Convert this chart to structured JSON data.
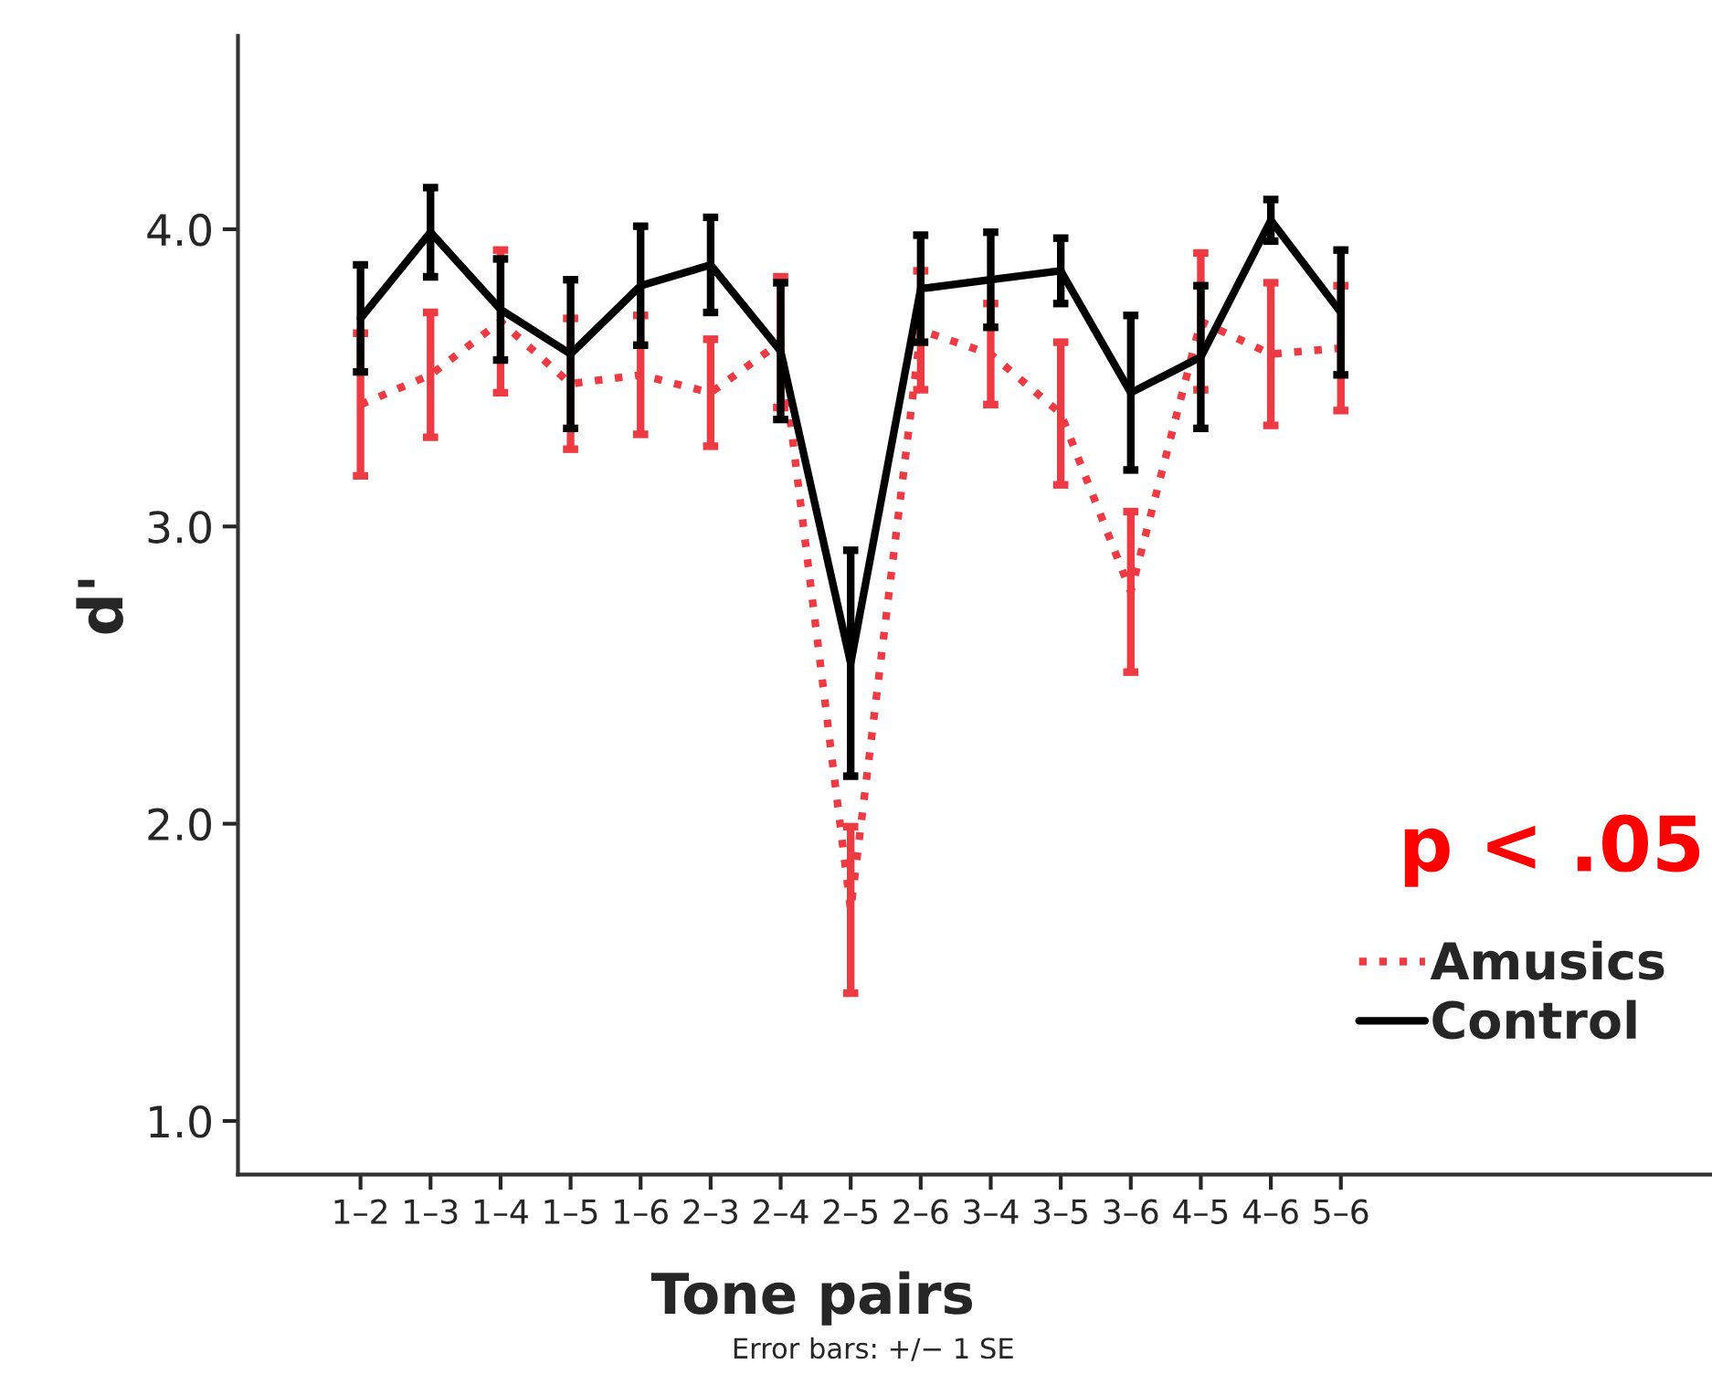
{
  "chart_data": {
    "type": "line",
    "xlabel": "Tone pairs",
    "ylabel": "d'",
    "categories": [
      "1–2",
      "1–3",
      "1–4",
      "1–5",
      "1–6",
      "2–3",
      "2–4",
      "2–5",
      "2–6",
      "3–4",
      "3–5",
      "3–6",
      "4–5",
      "4–6",
      "5–6"
    ],
    "series": [
      {
        "name": "Amusics",
        "color": "#ee3a43",
        "line_style": "dotted",
        "values": [
          3.41,
          3.51,
          3.69,
          3.48,
          3.51,
          3.45,
          3.62,
          1.71,
          3.66,
          3.58,
          3.38,
          2.78,
          3.69,
          3.58,
          3.6
        ],
        "errors": [
          0.24,
          0.21,
          0.24,
          0.22,
          0.2,
          0.18,
          0.22,
          0.28,
          0.2,
          0.17,
          0.24,
          0.27,
          0.23,
          0.24,
          0.21
        ]
      },
      {
        "name": "Control",
        "color": "#000000",
        "line_style": "solid",
        "values": [
          3.7,
          3.99,
          3.73,
          3.58,
          3.81,
          3.88,
          3.59,
          2.54,
          3.8,
          3.83,
          3.86,
          3.45,
          3.57,
          4.03,
          3.72
        ],
        "errors": [
          0.18,
          0.15,
          0.17,
          0.25,
          0.2,
          0.16,
          0.23,
          0.38,
          0.18,
          0.16,
          0.11,
          0.26,
          0.24,
          0.07,
          0.21
        ]
      }
    ],
    "ylim": [
      0.82,
      4.65
    ],
    "yticks": [
      {
        "value": 1,
        "label": "1.0"
      },
      {
        "value": 2,
        "label": "2.0"
      },
      {
        "value": 3,
        "label": "3.0"
      },
      {
        "value": 4,
        "label": "4.0"
      }
    ],
    "grid": false,
    "legend": "bottom right",
    "marker": "none",
    "annotations": [
      "p < .05",
      "Error bars: +/− 1 SE"
    ]
  }
}
